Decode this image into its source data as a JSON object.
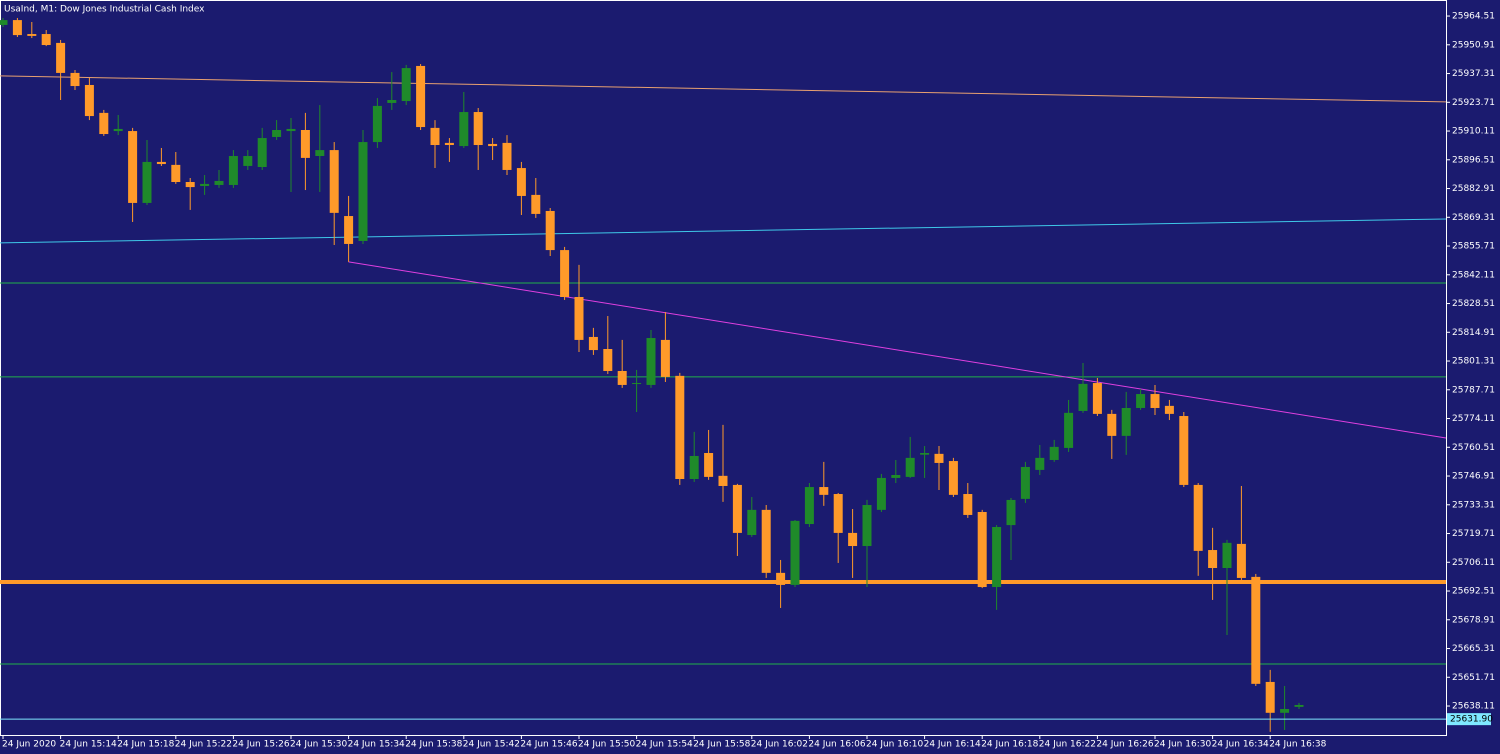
{
  "chart_data": {
    "type": "candlestick",
    "title": "UsaInd, M1:  Dow Jones Industrial Cash Index",
    "categories": [
      "24 Jun 2020",
      null,
      null,
      null,
      "24 Jun 15:14",
      null,
      null,
      null,
      "24 Jun 15:18",
      null,
      null,
      null,
      "24 Jun 15:22",
      null,
      null,
      null,
      "24 Jun 15:26",
      null,
      null,
      null,
      "24 Jun 15:30",
      null,
      null,
      null,
      "24 Jun 15:34",
      null,
      null,
      null,
      "24 Jun 15:38",
      null,
      null,
      null,
      "24 Jun 15:42",
      null,
      null,
      null,
      "24 Jun 15:46",
      null,
      null,
      null,
      "24 Jun 15:50",
      null,
      null,
      null,
      "24 Jun 15:54",
      null,
      null,
      null,
      "24 Jun 15:58",
      null,
      null,
      null,
      "24 Jun 16:02",
      null,
      null,
      null,
      "24 Jun 16:06",
      null,
      null,
      null,
      "24 Jun 16:10",
      null,
      null,
      null,
      "24 Jun 16:14",
      null,
      null,
      null,
      "24 Jun 16:18",
      null,
      null,
      null,
      "24 Jun 16:22",
      null,
      null,
      null,
      "24 Jun 16:26",
      null,
      null,
      null,
      "24 Jun 16:30",
      null,
      null,
      null,
      "24 Jun 16:34",
      null,
      null,
      null,
      "24 Jun 16:38",
      null,
      null
    ],
    "open": [
      25960.3,
      25962.6,
      25956.0,
      25956.0,
      25951.8,
      25937.6,
      25931.9,
      25918.7,
      25910.1,
      25910.1,
      25876.1,
      25895.5,
      25894.1,
      25886.0,
      25884.1,
      25884.6,
      25884.6,
      25893.6,
      25893.1,
      25907.3,
      25910.1,
      25910.6,
      25898.3,
      25901.1,
      25869.9,
      25858.1,
      25904.9,
      25923.4,
      25924.3,
      25940.9,
      25911.6,
      25904.5,
      25903.0,
      25919.1,
      25904.0,
      25904.5,
      25892.6,
      25879.9,
      25872.3,
      25853.8,
      25831.6,
      25812.7,
      25807.0,
      25796.6,
      25790.5,
      25790.0,
      25811.3,
      25794.3,
      25745.5,
      25757.8,
      25747.0,
      25742.7,
      25719.0,
      25730.9,
      25701.1,
      25695.4,
      25724.2,
      25741.7,
      25738.4,
      25720.0,
      25713.8,
      25730.9,
      25746.0,
      25746.5,
      25757.0,
      25757.4,
      25754.0,
      25738.4,
      25729.9,
      25694.4,
      25723.7,
      25736.1,
      25749.8,
      25754.5,
      25760.2,
      25777.7,
      25790.9,
      25776.3,
      25765.9,
      25779.1,
      25785.7,
      25780.1,
      25775.3,
      25742.7,
      25711.9,
      25703.4,
      25714.8,
      25699.2,
      25649.5,
      25634.9,
      25637.7
    ],
    "high": [
      25963.6,
      25963.6,
      25961.7,
      25957.9,
      25953.2,
      25939.0,
      25935.2,
      25920.1,
      25917.7,
      25911.6,
      25905.9,
      25902.1,
      25900.2,
      25887.9,
      25889.3,
      25891.7,
      25901.1,
      25901.1,
      25911.6,
      25915.3,
      25916.3,
      25918.7,
      25922.4,
      25904.9,
      25879.4,
      25910.6,
      25925.7,
      25938.0,
      25941.4,
      25941.8,
      25915.3,
      25906.8,
      25928.6,
      25921.0,
      25906.8,
      25908.2,
      25895.5,
      25887.9,
      25873.7,
      25855.3,
      25846.8,
      25817.0,
      25822.6,
      25811.3,
      25797.1,
      25816.0,
      25824.5,
      25795.7,
      25767.8,
      25768.7,
      25771.1,
      25743.2,
      25737.0,
      25733.2,
      25707.2,
      25726.1,
      25743.6,
      25753.6,
      25738.9,
      25731.3,
      25735.6,
      25747.9,
      25754.5,
      25765.4,
      25761.1,
      25761.1,
      25755.5,
      25743.6,
      25730.9,
      25723.7,
      25736.5,
      25753.6,
      25761.6,
      25764.0,
      25782.9,
      25800.4,
      25793.3,
      25778.2,
      25786.7,
      25788.1,
      25790.0,
      25782.9,
      25777.2,
      25743.6,
      25722.4,
      25716.7,
      25742.2,
      25700.6,
      25655.2,
      25647.6,
      25639.6
    ],
    "low": [
      25959.3,
      25954.6,
      25954.1,
      25950.3,
      25924.8,
      25929.5,
      25915.3,
      25907.8,
      25908.2,
      25867.1,
      25875.1,
      25893.6,
      25885.1,
      25872.8,
      25879.9,
      25883.2,
      25883.2,
      25891.7,
      25891.7,
      25905.9,
      25881.3,
      25882.2,
      25881.3,
      25856.2,
      25848.2,
      25856.7,
      25902.1,
      25920.1,
      25922.4,
      25910.6,
      25892.6,
      25895.5,
      25902.1,
      25891.7,
      25896.4,
      25889.3,
      25870.4,
      25869.0,
      25851.0,
      25830.2,
      25805.6,
      25804.2,
      25795.2,
      25788.6,
      25777.2,
      25788.6,
      25791.4,
      25742.7,
      25744.1,
      25745.1,
      25734.7,
      25709.1,
      25718.1,
      25698.7,
      25684.5,
      25694.4,
      25722.8,
      25732.8,
      25705.8,
      25698.7,
      25694.4,
      25729.9,
      25743.6,
      25746.0,
      25746.0,
      25740.3,
      25737.0,
      25727.1,
      25693.9,
      25683.6,
      25707.2,
      25734.2,
      25747.4,
      25753.6,
      25758.3,
      25776.8,
      25775.3,
      25755.0,
      25756.9,
      25778.2,
      25775.8,
      25773.4,
      25741.7,
      25699.7,
      25688.3,
      25671.7,
      25697.3,
      25647.6,
      25625.9,
      25626.8,
      25636.7
    ],
    "close": [
      25962.6,
      25955.5,
      25955.1,
      25950.8,
      25937.6,
      25931.4,
      25917.2,
      25908.7,
      25911.1,
      25876.1,
      25895.5,
      25894.5,
      25886.0,
      25883.6,
      25885.1,
      25886.5,
      25898.3,
      25898.3,
      25906.8,
      25910.6,
      25911.1,
      25897.4,
      25901.1,
      25871.4,
      25856.7,
      25904.9,
      25922.0,
      25924.8,
      25939.9,
      25912.0,
      25903.5,
      25903.5,
      25919.1,
      25903.5,
      25903.0,
      25891.7,
      25879.4,
      25870.9,
      25853.8,
      25831.6,
      25811.3,
      25806.5,
      25796.6,
      25790.0,
      25790.9,
      25812.2,
      25793.8,
      25745.5,
      25756.4,
      25746.5,
      25742.2,
      25720.0,
      25730.9,
      25701.1,
      25695.4,
      25725.7,
      25741.7,
      25738.0,
      25720.0,
      25713.8,
      25733.2,
      25746.0,
      25747.4,
      25755.5,
      25757.8,
      25753.1,
      25738.0,
      25728.5,
      25694.4,
      25722.8,
      25735.6,
      25751.2,
      25755.5,
      25760.7,
      25776.8,
      25790.5,
      25776.3,
      25765.9,
      25779.1,
      25785.7,
      25779.1,
      25776.3,
      25742.7,
      25711.5,
      25703.4,
      25715.3,
      25698.7,
      25648.6,
      25634.9,
      25636.7,
      25638.6
    ],
    "up_color": "#1f8a2a",
    "down_color": "#ff9a2a",
    "ylim": [
      25624.4,
      25972.1
    ],
    "yticks": [
      25964.51,
      25950.91,
      25937.31,
      25923.71,
      25910.11,
      25896.51,
      25882.91,
      25869.31,
      25855.71,
      25842.11,
      25828.51,
      25814.91,
      25801.31,
      25787.71,
      25774.11,
      25760.51,
      25746.91,
      25733.31,
      25719.71,
      25706.11,
      25692.51,
      25678.91,
      25665.31,
      25651.71,
      25638.11
    ],
    "lines": [
      {
        "color": "#e8a070",
        "values": [
          25936.2,
          25923.9
        ]
      },
      {
        "color": "#3fc8e8",
        "values": [
          25857.2,
          25868.5
        ]
      },
      {
        "color": "#22b04a",
        "values": [
          25838.2,
          25838.2
        ]
      },
      {
        "color": "#22b04a",
        "values": [
          25793.8,
          25793.8
        ]
      },
      {
        "color": "#22b04a",
        "values": [
          25658.0,
          25658.0
        ]
      },
      {
        "color": "#ff9a2a",
        "values": [
          25696.8,
          25696.8
        ]
      },
      {
        "color": "#e040e0",
        "values": [
          25848.2,
          25764.9
        ]
      }
    ],
    "current_price": {
      "value": 25631.9,
      "label": "25631.90"
    },
    "current_color": "#7fe8ff"
  }
}
